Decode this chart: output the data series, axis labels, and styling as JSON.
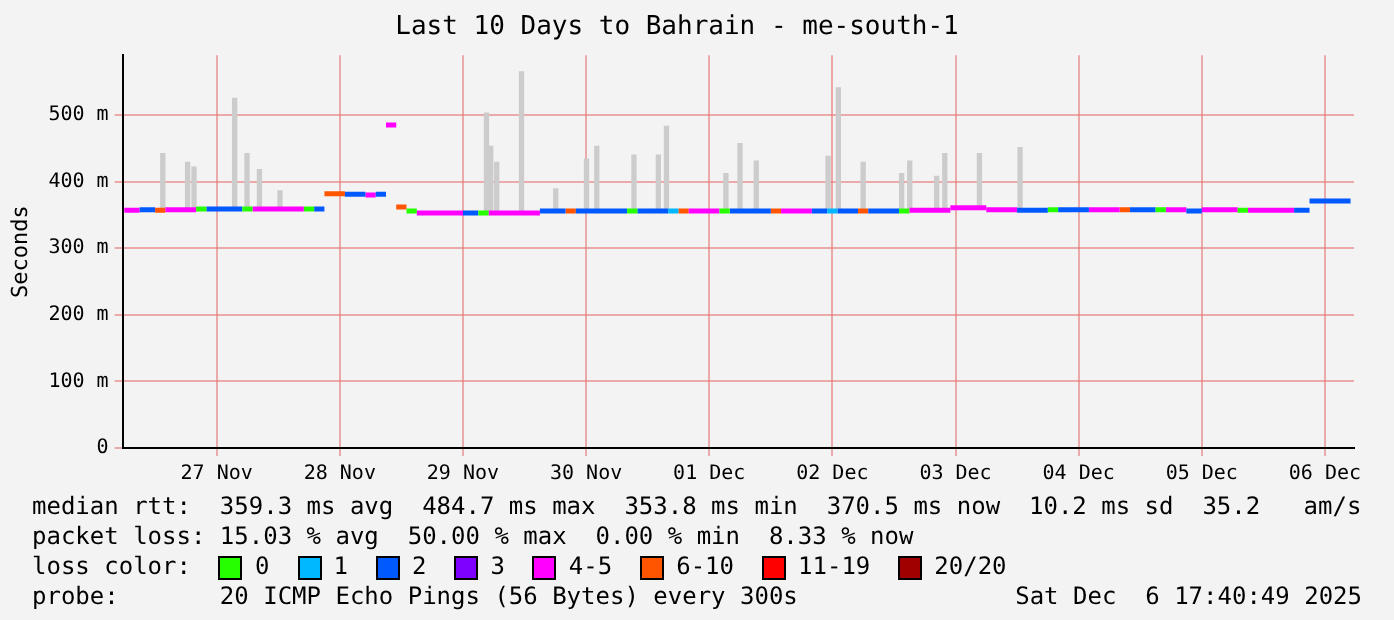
{
  "chart_data": {
    "type": "line",
    "title": "Last 10 Days to Bahrain - me-south-1",
    "ylabel": "Seconds",
    "xlim": [
      "2025-11-26T17:40",
      "2025-12-06T17:40"
    ],
    "xticks": [
      {
        "value": "2025-11-27T12:00",
        "label": "27 Nov"
      },
      {
        "value": "2025-11-28T12:00",
        "label": "28 Nov"
      },
      {
        "value": "2025-11-29T12:00",
        "label": "29 Nov"
      },
      {
        "value": "2025-11-30T12:00",
        "label": "30 Nov"
      },
      {
        "value": "2025-12-01T12:00",
        "label": "01 Dec"
      },
      {
        "value": "2025-12-02T12:00",
        "label": "02 Dec"
      },
      {
        "value": "2025-12-03T12:00",
        "label": "03 Dec"
      },
      {
        "value": "2025-12-04T12:00",
        "label": "04 Dec"
      },
      {
        "value": "2025-12-05T12:00",
        "label": "05 Dec"
      },
      {
        "value": "2025-12-06T12:00",
        "label": "06 Dec"
      }
    ],
    "ylim": [
      0,
      590
    ],
    "yticks": [
      0,
      {
        "value": 100,
        "label": "100 m"
      },
      {
        "value": 200,
        "label": "200 m"
      },
      {
        "value": 300,
        "label": "300 m"
      },
      {
        "value": 400,
        "label": "400 m"
      },
      {
        "value": 500,
        "label": "500 m"
      }
    ],
    "grid": true,
    "legend": "bottom",
    "legend_title": "loss color:",
    "series": [
      {
        "type": "bar",
        "color": "#cccccc",
        "x": [
          "2025-11-27T01:30",
          "2025-11-27T06:20",
          "2025-11-27T07:35",
          "2025-11-27T15:30",
          "2025-11-27T17:55",
          "2025-11-27T20:20",
          "2025-11-28T00:20",
          "2025-11-29T16:35",
          "2025-11-29T17:25",
          "2025-11-29T18:35",
          "2025-11-29T23:25",
          "2025-11-30T06:05",
          "2025-11-30T12:05",
          "2025-11-30T14:05",
          "2025-11-30T21:20",
          "2025-12-01T02:05",
          "2025-12-01T03:40",
          "2025-12-01T15:15",
          "2025-12-01T18:00",
          "2025-12-01T21:10",
          "2025-12-02T11:10",
          "2025-12-02T13:10",
          "2025-12-02T18:00",
          "2025-12-03T01:30",
          "2025-12-03T03:05",
          "2025-12-03T08:20",
          "2025-12-03T09:55",
          "2025-12-03T16:40",
          "2025-12-04T00:35"
        ],
        "base": [
          358,
          358,
          358,
          358,
          358,
          358,
          358,
          353,
          353,
          353,
          353,
          356,
          356,
          356,
          356,
          356,
          356,
          356,
          356,
          356,
          356,
          356,
          356,
          356,
          357,
          357,
          357,
          361,
          357
        ],
        "values": [
          84,
          71,
          64,
          167,
          84,
          60,
          28,
          150,
          100,
          76,
          212,
          33,
          78,
          97,
          84,
          84,
          127,
          56,
          101,
          75,
          82,
          185,
          73,
          56,
          74,
          51,
          85,
          81,
          94
        ]
      },
      {
        "name": "0",
        "color": "#26ff00",
        "x": [
          "2025-11-27T08:00",
          "2025-11-27T10:00",
          "2025-11-27T17:00",
          "2025-11-27T19:00",
          "2025-11-28T05:00",
          "2025-11-28T07:00",
          "2025-11-29T01:00",
          "2025-11-29T03:00",
          "2025-11-29T15:00",
          "2025-11-29T17:00",
          "2025-11-30T20:00",
          "2025-11-30T22:00",
          "2025-12-01T14:00",
          "2025-12-01T16:00",
          "2025-12-03T01:00",
          "2025-12-03T03:00",
          "2025-12-04T06:00",
          "2025-12-04T08:00",
          "2025-12-05T03:00",
          "2025-12-05T05:00",
          "2025-12-05T19:00",
          "2025-12-05T21:00"
        ],
        "values": [
          359,
          359,
          359,
          359,
          359,
          359,
          356,
          356,
          353,
          353,
          356,
          356,
          356,
          356,
          356,
          356,
          358,
          358,
          358,
          358,
          357,
          357
        ]
      },
      {
        "name": "1",
        "color": "#00b8ff",
        "x": [
          "2025-12-01T04:00",
          "2025-12-01T06:00",
          "2025-12-02T11:00",
          "2025-12-02T13:00"
        ],
        "values": [
          356,
          356,
          356,
          356
        ]
      },
      {
        "name": "2",
        "color": "#0059ff",
        "x": [
          "2025-11-26T21:00",
          "2025-11-27T00:00",
          "2025-11-27T10:00",
          "2025-11-27T17:00",
          "2025-11-28T07:00",
          "2025-11-28T09:00",
          "2025-11-28T13:00",
          "2025-11-28T17:00",
          "2025-11-28T19:00",
          "2025-11-28T21:00",
          "2025-11-29T12:00",
          "2025-11-29T15:00",
          "2025-11-30T03:00",
          "2025-11-30T08:00",
          "2025-11-30T10:00",
          "2025-11-30T20:00",
          "2025-11-30T22:00",
          "2025-12-01T04:00",
          "2025-12-01T16:00",
          "2025-12-02T00:00",
          "2025-12-02T08:00",
          "2025-12-02T11:00",
          "2025-12-02T13:00",
          "2025-12-02T17:00",
          "2025-12-02T19:00",
          "2025-12-03T01:00",
          "2025-12-04T00:00",
          "2025-12-04T06:00",
          "2025-12-04T08:00",
          "2025-12-04T14:00",
          "2025-12-04T22:00",
          "2025-12-05T03:00",
          "2025-12-05T09:00",
          "2025-12-05T12:00",
          "2025-12-06T06:00",
          "2025-12-06T09:00",
          "2025-12-06T09:00",
          "2025-12-06T17:00"
        ],
        "values": [
          358,
          358,
          359,
          359,
          359,
          359,
          381,
          381,
          381,
          381,
          353,
          353,
          356,
          356,
          356,
          356,
          356,
          356,
          356,
          356,
          356,
          356,
          356,
          356,
          356,
          356,
          357,
          357,
          358,
          358,
          358,
          358,
          356,
          356,
          357,
          357,
          371,
          371
        ]
      },
      {
        "name": "3",
        "color": "#7e00ff"
      },
      {
        "name": "4-5",
        "color": "#ff00ff",
        "x": [
          "2025-11-26T18:00",
          "2025-11-26T21:00",
          "2025-11-27T02:00",
          "2025-11-27T08:00",
          "2025-11-27T19:00",
          "2025-11-28T05:00",
          "2025-11-28T17:00",
          "2025-11-28T19:00",
          "2025-11-28T21:00",
          "2025-11-28T23:00",
          "2025-11-29T03:00",
          "2025-11-29T12:00",
          "2025-11-29T17:00",
          "2025-11-30T03:00",
          "2025-12-01T08:00",
          "2025-12-01T14:00",
          "2025-12-02T02:00",
          "2025-12-02T08:00",
          "2025-12-03T03:00",
          "2025-12-03T11:00",
          "2025-12-03T11:00",
          "2025-12-03T18:00",
          "2025-12-03T18:00",
          "2025-12-04T00:00",
          "2025-12-04T14:00",
          "2025-12-04T20:00",
          "2025-12-05T05:00",
          "2025-12-05T09:00",
          "2025-12-05T12:00",
          "2025-12-05T19:00",
          "2025-12-05T21:00",
          "2025-12-06T06:00"
        ],
        "values": [
          357,
          357,
          358,
          358,
          359,
          359,
          380,
          380,
          485,
          485,
          353,
          353,
          353,
          353,
          356,
          356,
          356,
          356,
          357,
          357,
          361,
          361,
          358,
          358,
          358,
          358,
          358,
          358,
          358,
          358,
          357,
          357
        ]
      },
      {
        "name": "6-10",
        "color": "#ff5500",
        "x": [
          "2025-11-27T00:00",
          "2025-11-27T02:00",
          "2025-11-28T09:00",
          "2025-11-28T13:00",
          "2025-11-28T23:00",
          "2025-11-29T01:00",
          "2025-11-30T08:00",
          "2025-11-30T10:00",
          "2025-12-01T06:00",
          "2025-12-01T08:00",
          "2025-12-02T00:00",
          "2025-12-02T02:00",
          "2025-12-02T17:00",
          "2025-12-02T19:00",
          "2025-12-04T20:00",
          "2025-12-04T22:00"
        ],
        "values": [
          357,
          357,
          382,
          382,
          362,
          362,
          356,
          356,
          356,
          356,
          356,
          356,
          356,
          356,
          358,
          358
        ]
      },
      {
        "name": "11-19",
        "color": "#ff0000"
      },
      {
        "name": "20/20",
        "color": "#a10000"
      }
    ],
    "annotations": [
      "median rtt:  359.3 ms avg  484.7 ms max  353.8 ms min  370.5 ms now  10.2 ms sd  35.2   am/s",
      "packet loss: 15.03 % avg  50.00 % max  0.00 % min  8.33 % now",
      "probe:       20 ICMP Echo Pings (56 Bytes) every 300s",
      "Sat Dec  6 17:40:49 2025"
    ]
  }
}
